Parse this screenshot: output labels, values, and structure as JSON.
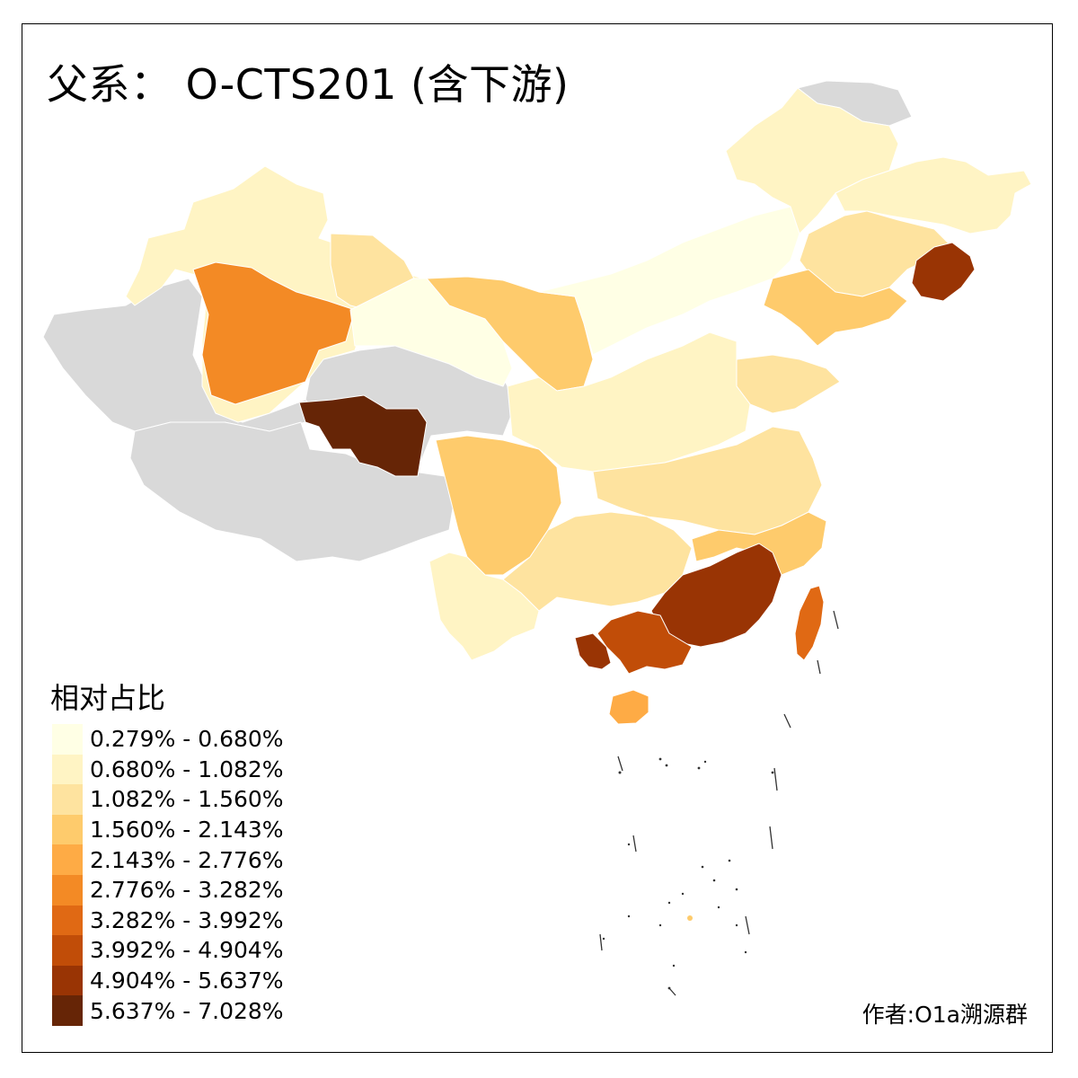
{
  "map": {
    "title": "父系： O-CTS201 (含下游)",
    "credit": "作者:O1a溯源群"
  },
  "legend": {
    "title": "相对占比",
    "no_data_color": "#d9d9d9",
    "classes": [
      {
        "label": "0.279% - 0.680%",
        "color": "#ffffe5"
      },
      {
        "label": "0.680% - 1.082%",
        "color": "#fff4c4"
      },
      {
        "label": "1.082% - 1.560%",
        "color": "#fee39f"
      },
      {
        "label": "1.560% - 2.143%",
        "color": "#fecb6c"
      },
      {
        "label": "2.143% - 2.776%",
        "color": "#feab45"
      },
      {
        "label": "2.776% - 3.282%",
        "color": "#f38a25"
      },
      {
        "label": "3.282% - 3.992%",
        "color": "#e06914"
      },
      {
        "label": "3.992% - 4.904%",
        "color": "#c14d08"
      },
      {
        "label": "4.904% - 5.637%",
        "color": "#993404"
      },
      {
        "label": "5.637% - 7.028%",
        "color": "#662506"
      }
    ]
  },
  "regions": [
    {
      "name": "northwest-west",
      "class": -1
    },
    {
      "name": "tibet-west",
      "class": -1
    },
    {
      "name": "qinghai",
      "class": -1
    },
    {
      "name": "northeast-far-north",
      "class": -1
    },
    {
      "name": "dzungaria-north",
      "class": 1
    },
    {
      "name": "xinjiang-central",
      "class": 5
    },
    {
      "name": "xinjiang-east",
      "class": 2
    },
    {
      "name": "tibet-ngari",
      "class": 9
    },
    {
      "name": "gansu-west",
      "class": 0
    },
    {
      "name": "inner-mongolia-west",
      "class": 3
    },
    {
      "name": "inner-mongolia-central",
      "class": 0
    },
    {
      "name": "inner-mongolia-east",
      "class": 1
    },
    {
      "name": "heilongjiang",
      "class": 1
    },
    {
      "name": "jilin",
      "class": 2
    },
    {
      "name": "yanbian",
      "class": 8
    },
    {
      "name": "liaoning",
      "class": 3
    },
    {
      "name": "shandong",
      "class": 2
    },
    {
      "name": "sichuan",
      "class": 3
    },
    {
      "name": "shaanxi-henan",
      "class": 1
    },
    {
      "name": "hubei-jiangsu",
      "class": 2
    },
    {
      "name": "yunnan",
      "class": 1
    },
    {
      "name": "guizhou-hunan",
      "class": 2
    },
    {
      "name": "jiangxi-fujian",
      "class": 3
    },
    {
      "name": "guangdong-east",
      "class": 8
    },
    {
      "name": "guangdong-west",
      "class": 7
    },
    {
      "name": "guangxi-south",
      "class": 8
    },
    {
      "name": "taiwan",
      "class": 6
    },
    {
      "name": "hainan",
      "class": 4
    }
  ]
}
